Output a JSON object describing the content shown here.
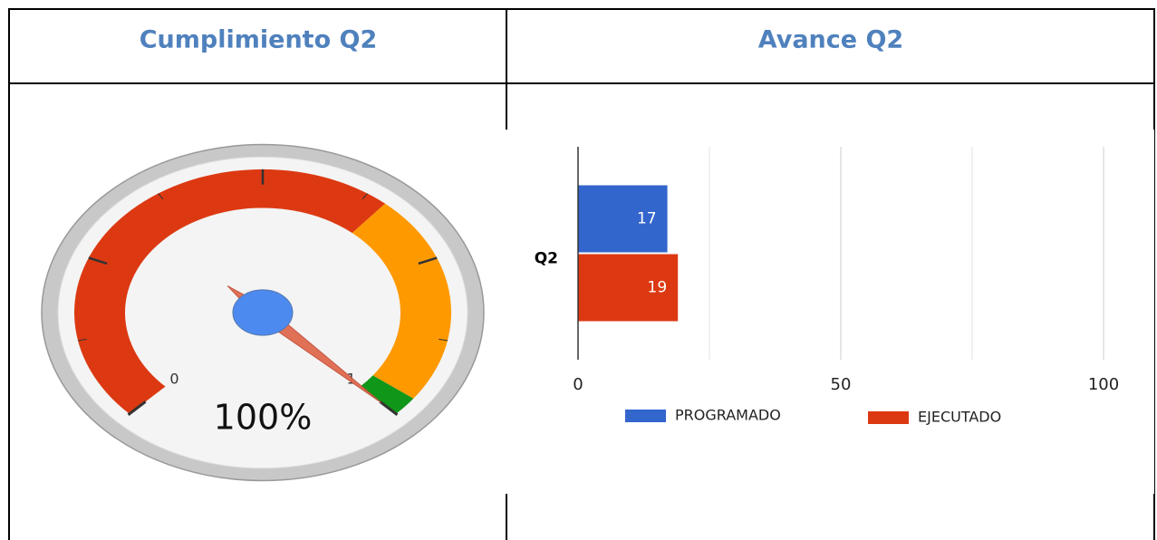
{
  "table": {
    "headers": [
      "Cumplimiento Q2",
      "Avance Q2"
    ]
  },
  "chart_data": [
    {
      "type": "gauge",
      "values": [
        1
      ],
      "value_labels": [
        "100%"
      ],
      "xlim": [
        0,
        1
      ],
      "xticks": [
        0,
        1
      ],
      "bands": [
        {
          "from": 0,
          "to": 0.65,
          "color": "#dc3912"
        },
        {
          "from": 0.65,
          "to": 0.97,
          "color": "#ff9900"
        },
        {
          "from": 0.97,
          "to": 1,
          "color": "#109618"
        }
      ]
    },
    {
      "type": "bar",
      "orientation": "horizontal",
      "categories": [
        "Q2"
      ],
      "series": [
        {
          "name": "PROGRAMADO",
          "color": "#3366cc",
          "values": [
            17
          ]
        },
        {
          "name": "EJECUTADO",
          "color": "#dc3912",
          "values": [
            19
          ]
        }
      ],
      "xlim": [
        0,
        100
      ],
      "xticks": [
        0,
        50,
        100
      ],
      "grid": true,
      "legend": "bottom"
    }
  ]
}
